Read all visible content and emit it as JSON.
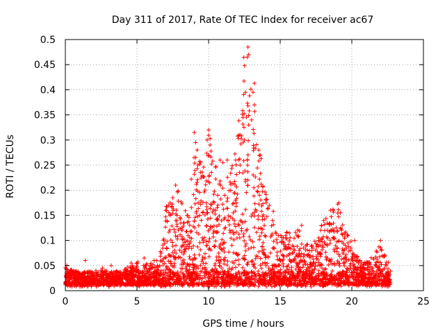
{
  "chart_data": {
    "type": "scatter",
    "title": "Day 311 of 2017, Rate Of TEC Index for receiver ac67",
    "xlabel": "GPS time / hours",
    "ylabel": "ROTI / TECUs",
    "xlim": [
      0,
      25
    ],
    "ylim": [
      0,
      0.5
    ],
    "xticks": [
      "0",
      "5",
      "10",
      "15",
      "20",
      "25"
    ],
    "yticks": [
      "0",
      "0.05",
      "0.1",
      "0.15",
      "0.2",
      "0.25",
      "0.3",
      "0.35",
      "0.4",
      "0.45",
      "0.5"
    ],
    "grid": true,
    "legend": "none",
    "marker": "+",
    "color": "#ff0000",
    "series": [
      {
        "name": "ROTI",
        "envelope": {
          "x": [
            0,
            0.5,
            1,
            2,
            3,
            4,
            5,
            5.5,
            6,
            6.5,
            7,
            7.5,
            8,
            8.5,
            9,
            9.5,
            10,
            10.5,
            11,
            11.5,
            12,
            12.5,
            13,
            13.5,
            14,
            14.5,
            15,
            15.5,
            16,
            16.5,
            17,
            17.5,
            18,
            18.5,
            19,
            19.5,
            20,
            20.5,
            21,
            21.5,
            22,
            22.5,
            22.7
          ],
          "y": [
            0.05,
            0.04,
            0.04,
            0.04,
            0.04,
            0.04,
            0.06,
            0.05,
            0.06,
            0.06,
            0.17,
            0.2,
            0.2,
            0.16,
            0.31,
            0.26,
            0.32,
            0.26,
            0.22,
            0.24,
            0.3,
            0.48,
            0.41,
            0.3,
            0.2,
            0.16,
            0.11,
            0.12,
            0.13,
            0.12,
            0.09,
            0.1,
            0.14,
            0.16,
            0.18,
            0.12,
            0.1,
            0.06,
            0.06,
            0.07,
            0.1,
            0.06,
            0.05
          ]
        },
        "points": [
          [
            12.75,
            0.485
          ],
          [
            12.8,
            0.47
          ],
          [
            12.7,
            0.465
          ],
          [
            13.2,
            0.413
          ],
          [
            13.1,
            0.395
          ],
          [
            12.75,
            0.368
          ],
          [
            13.2,
            0.37
          ],
          [
            12.8,
            0.33
          ],
          [
            13.0,
            0.34
          ],
          [
            12.4,
            0.345
          ],
          [
            9.0,
            0.315
          ],
          [
            9.1,
            0.295
          ],
          [
            9.2,
            0.28
          ],
          [
            9.25,
            0.25
          ],
          [
            10.0,
            0.32
          ],
          [
            9.9,
            0.3
          ],
          [
            10.1,
            0.29
          ],
          [
            10.8,
            0.26
          ],
          [
            11.0,
            0.255
          ],
          [
            11.3,
            0.26
          ],
          [
            13.5,
            0.28
          ],
          [
            13.6,
            0.27
          ],
          [
            12.5,
            0.3
          ],
          [
            12.2,
            0.25
          ],
          [
            7.7,
            0.21
          ],
          [
            7.5,
            0.185
          ],
          [
            7.2,
            0.17
          ],
          [
            7.0,
            0.16
          ],
          [
            8.5,
            0.15
          ],
          [
            16.5,
            0.13
          ],
          [
            18.7,
            0.16
          ],
          [
            19.1,
            0.175
          ],
          [
            19.2,
            0.155
          ],
          [
            18.3,
            0.12
          ],
          [
            20.2,
            0.1
          ],
          [
            22.0,
            0.1
          ],
          [
            1.4,
            0.06
          ],
          [
            0.1,
            0.05
          ],
          [
            3.2,
            0.05
          ],
          [
            5.5,
            0.065
          ],
          [
            6.2,
            0.06
          ],
          [
            4.6,
            0.055
          ],
          [
            2.6,
            0.045
          ],
          [
            21.1,
            0.055
          ],
          [
            22.4,
            0.05
          ]
        ]
      }
    ]
  }
}
